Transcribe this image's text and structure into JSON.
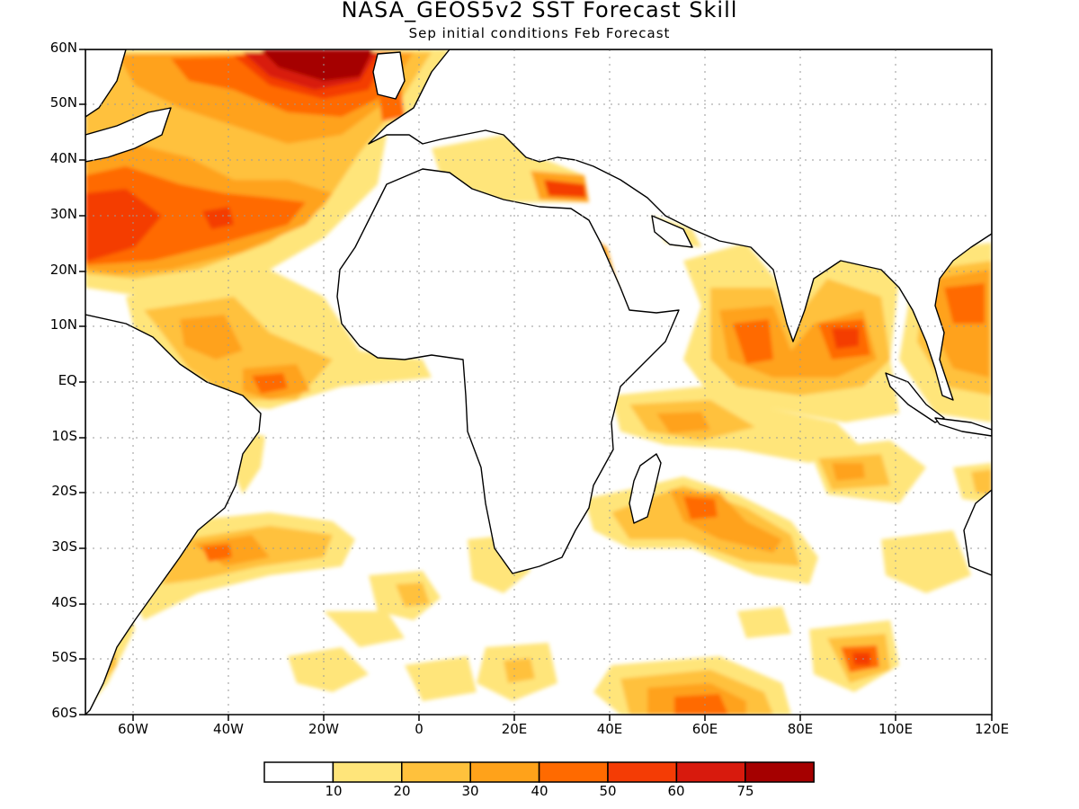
{
  "title": "NASA_GEOS5v2 SST Forecast Skill",
  "subtitle": "Sep initial conditions  Feb Forecast",
  "lat_labels": [
    "60N",
    "50N",
    "40N",
    "30N",
    "20N",
    "10N",
    "EQ",
    "10S",
    "20S",
    "30S",
    "40S",
    "50S",
    "60S"
  ],
  "lon_labels": [
    "60W",
    "40W",
    "20W",
    "0",
    "20E",
    "40E",
    "60E",
    "80E",
    "100E",
    "120E"
  ],
  "colorbar": {
    "colors": [
      "#ffffff",
      "#ffe57a",
      "#ffc13c",
      "#ffa21a",
      "#ff6a00",
      "#f43c05",
      "#d81a0d",
      "#a50000"
    ],
    "labels": [
      "10",
      "20",
      "30",
      "40",
      "50",
      "60",
      "75"
    ]
  }
}
